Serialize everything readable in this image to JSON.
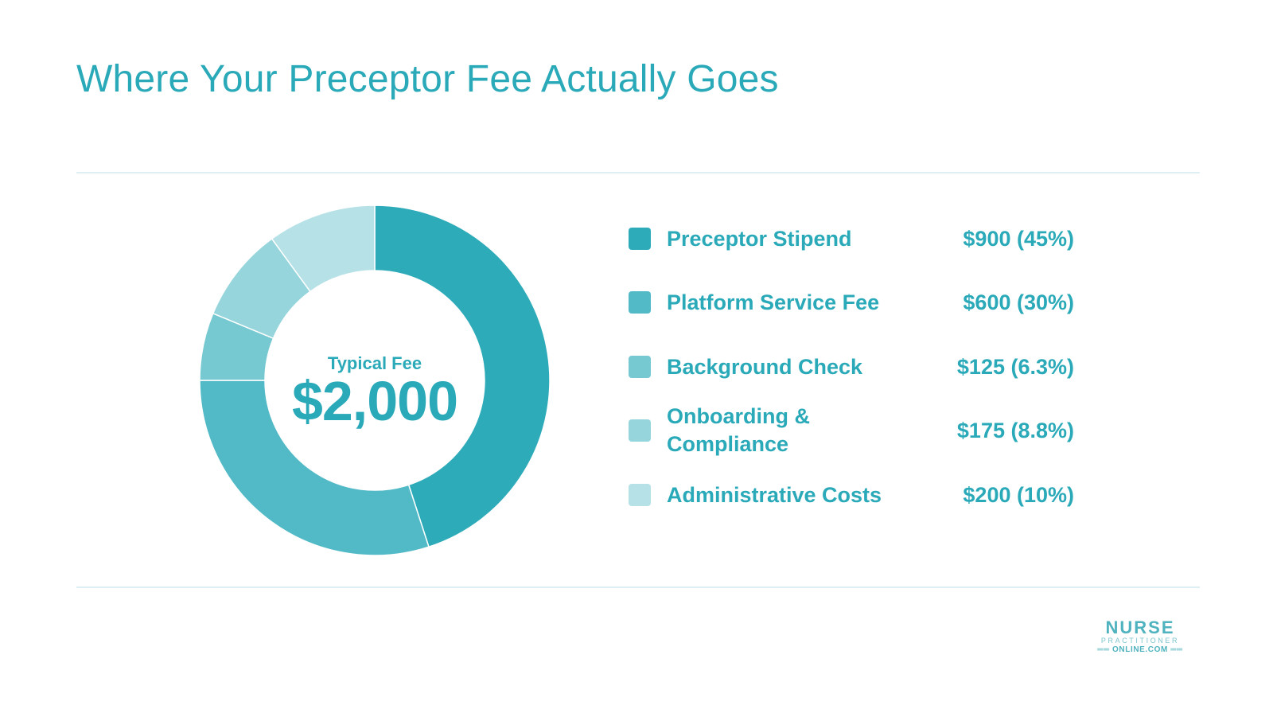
{
  "page": {
    "title": "Where Your Preceptor Fee Actually Goes",
    "accent_color": "#2aa9b9"
  },
  "center": {
    "sublabel": "Typical Fee",
    "total": "$2,000"
  },
  "chart_data": {
    "type": "pie",
    "variant": "donut",
    "title": "Where Your Preceptor Fee Actually Goes",
    "total": 2000,
    "categories": [
      "Preceptor Stipend",
      "Platform Service Fee",
      "Background Check",
      "Onboarding & Compliance",
      "Administrative Costs"
    ],
    "values": [
      900,
      600,
      125,
      175,
      200
    ],
    "colors": [
      "#2eabb9",
      "#52bac6",
      "#76c8d1",
      "#96d5dc",
      "#b6e2e7"
    ],
    "legend_placement": "right",
    "legend": [
      {
        "label": "Preceptor Stipend",
        "value_text": "$900 (45%)"
      },
      {
        "label": "Platform Service Fee",
        "value_text": "$600 (30%)"
      },
      {
        "label": "Background Check",
        "value_text": "$125 (6.3%)"
      },
      {
        "label": "Onboarding & Compliance",
        "value_text": "$175 (8.8%)"
      },
      {
        "label": "Administrative Costs",
        "value_text": "$200 (10%)"
      }
    ]
  },
  "logo": {
    "line1": "NURSE",
    "line2": "PRACTITIONER",
    "line3": "══ ONLINE.COM ══"
  }
}
